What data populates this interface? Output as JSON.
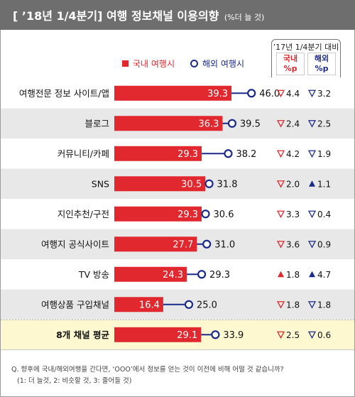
{
  "header": {
    "title": "[ ’18년 1/4분기] 여행 정보채널 이용의향",
    "title_note": "(%더 늘 것)"
  },
  "legend": {
    "domestic": "국내 여행시",
    "overseas": "해외 여행시"
  },
  "comparison": {
    "title": "’17년 1/4분기 대비",
    "domestic_head_line1": "국내",
    "domestic_head_line2": "%p",
    "overseas_head_line1": "해외",
    "overseas_head_line2": "%p"
  },
  "colors": {
    "domestic": "#e0282e",
    "overseas": "#1a2a8a",
    "row_alt": "#e8e8e8",
    "average_row": "#fdf8cf",
    "header_bg": "#6e6e6e"
  },
  "chart_data": {
    "type": "bar",
    "categories": [
      "여행전문 정보 사이트/앱",
      "블로그",
      "커뮤니티/카페",
      "SNS",
      "지인추천/구전",
      "여행지 공식사이트",
      "TV 방송",
      "여행상품 구입채널",
      "8개 채널 평균"
    ],
    "series": [
      {
        "name": "국내 여행시",
        "values": [
          39.3,
          36.3,
          29.3,
          30.5,
          29.3,
          27.7,
          24.3,
          16.4,
          29.1
        ]
      },
      {
        "name": "해외 여행시",
        "values": [
          46.0,
          39.5,
          38.2,
          31.8,
          30.6,
          31.0,
          29.3,
          25.0,
          33.9
        ]
      }
    ],
    "domestic_change": [
      {
        "dir": "down",
        "text": "4.4"
      },
      {
        "dir": "down",
        "text": "2.4"
      },
      {
        "dir": "down",
        "text": "4.2"
      },
      {
        "dir": "down",
        "text": "2.0"
      },
      {
        "dir": "down",
        "text": "3.3"
      },
      {
        "dir": "down",
        "text": "3.6"
      },
      {
        "dir": "up",
        "text": "1.8"
      },
      {
        "dir": "down",
        "text": "1.8"
      },
      {
        "dir": "down",
        "text": "2.5"
      }
    ],
    "overseas_change": [
      {
        "dir": "down",
        "text": "3.2"
      },
      {
        "dir": "down",
        "text": "2.5"
      },
      {
        "dir": "down",
        "text": "1.9"
      },
      {
        "dir": "up",
        "text": "1.1"
      },
      {
        "dir": "down",
        "text": "0.4"
      },
      {
        "dir": "down",
        "text": "0.9"
      },
      {
        "dir": "up",
        "text": "4.7"
      },
      {
        "dir": "down",
        "text": "1.8"
      },
      {
        "dir": "down",
        "text": "0.6"
      }
    ],
    "xlim": [
      0,
      60
    ]
  },
  "footnote": {
    "line1": "Q. 향후에 국내/해외여행을 간다면, ‘OOO’에서 정보를 얻는 것이 이전에 비해 어떨 것 같습니까?",
    "line2": "(1: 더 늘것, 2: 비슷할 것, 3: 줄어들 것)"
  }
}
